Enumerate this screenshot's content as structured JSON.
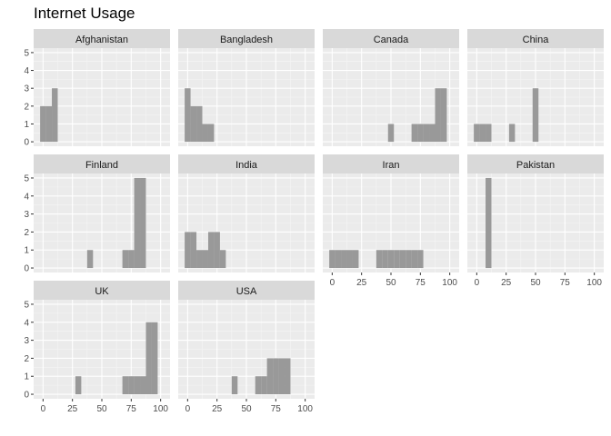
{
  "chart_data": {
    "type": "histogram-facets",
    "title": "Internet Usage",
    "xlabel": "",
    "ylabel": "",
    "x_ticks": [
      0,
      25,
      50,
      75,
      100
    ],
    "y_ticks": [
      0,
      1,
      2,
      3,
      4,
      5
    ],
    "xlim": [
      -8,
      108
    ],
    "ylim": [
      -0.25,
      5.25
    ],
    "bin_width": 5,
    "colors": {
      "panel_bg": "#ebebeb",
      "grid_major": "#ffffff",
      "grid_minor": "#f5f5f5",
      "strip_bg": "#d9d9d9",
      "bar_fill": "#999999",
      "axis_tick": "#333333"
    },
    "facets": [
      {
        "name": "Afghanistan",
        "bins": [
          {
            "x": 0,
            "count": 2
          },
          {
            "x": 5,
            "count": 2
          },
          {
            "x": 10,
            "count": 3
          }
        ]
      },
      {
        "name": "Bangladesh",
        "bins": [
          {
            "x": 0,
            "count": 3
          },
          {
            "x": 5,
            "count": 2
          },
          {
            "x": 10,
            "count": 2
          },
          {
            "x": 15,
            "count": 1
          },
          {
            "x": 20,
            "count": 1
          }
        ]
      },
      {
        "name": "Canada",
        "bins": [
          {
            "x": 50,
            "count": 1
          },
          {
            "x": 70,
            "count": 1
          },
          {
            "x": 75,
            "count": 1
          },
          {
            "x": 80,
            "count": 1
          },
          {
            "x": 85,
            "count": 1
          },
          {
            "x": 90,
            "count": 3
          },
          {
            "x": 95,
            "count": 3
          }
        ]
      },
      {
        "name": "China",
        "bins": [
          {
            "x": 0,
            "count": 1
          },
          {
            "x": 5,
            "count": 1
          },
          {
            "x": 10,
            "count": 1
          },
          {
            "x": 30,
            "count": 1
          },
          {
            "x": 50,
            "count": 3
          }
        ]
      },
      {
        "name": "Finland",
        "bins": [
          {
            "x": 40,
            "count": 1
          },
          {
            "x": 70,
            "count": 1
          },
          {
            "x": 75,
            "count": 1
          },
          {
            "x": 80,
            "count": 5
          },
          {
            "x": 85,
            "count": 5
          }
        ]
      },
      {
        "name": "India",
        "bins": [
          {
            "x": 0,
            "count": 2
          },
          {
            "x": 5,
            "count": 2
          },
          {
            "x": 10,
            "count": 1
          },
          {
            "x": 15,
            "count": 1
          },
          {
            "x": 20,
            "count": 2
          },
          {
            "x": 25,
            "count": 2
          },
          {
            "x": 30,
            "count": 1
          }
        ]
      },
      {
        "name": "Iran",
        "bins": [
          {
            "x": 0,
            "count": 1
          },
          {
            "x": 5,
            "count": 1
          },
          {
            "x": 10,
            "count": 1
          },
          {
            "x": 15,
            "count": 1
          },
          {
            "x": 20,
            "count": 1
          },
          {
            "x": 40,
            "count": 1
          },
          {
            "x": 45,
            "count": 1
          },
          {
            "x": 50,
            "count": 1
          },
          {
            "x": 55,
            "count": 1
          },
          {
            "x": 60,
            "count": 1
          },
          {
            "x": 65,
            "count": 1
          },
          {
            "x": 70,
            "count": 1
          },
          {
            "x": 75,
            "count": 1
          }
        ]
      },
      {
        "name": "Pakistan",
        "bins": [
          {
            "x": 10,
            "count": 5
          }
        ]
      },
      {
        "name": "UK",
        "bins": [
          {
            "x": 30,
            "count": 1
          },
          {
            "x": 70,
            "count": 1
          },
          {
            "x": 75,
            "count": 1
          },
          {
            "x": 80,
            "count": 1
          },
          {
            "x": 85,
            "count": 1
          },
          {
            "x": 90,
            "count": 4
          },
          {
            "x": 95,
            "count": 4
          }
        ]
      },
      {
        "name": "USA",
        "bins": [
          {
            "x": 40,
            "count": 1
          },
          {
            "x": 60,
            "count": 1
          },
          {
            "x": 65,
            "count": 1
          },
          {
            "x": 70,
            "count": 2
          },
          {
            "x": 75,
            "count": 2
          },
          {
            "x": 80,
            "count": 2
          },
          {
            "x": 85,
            "count": 2
          }
        ]
      }
    ]
  }
}
